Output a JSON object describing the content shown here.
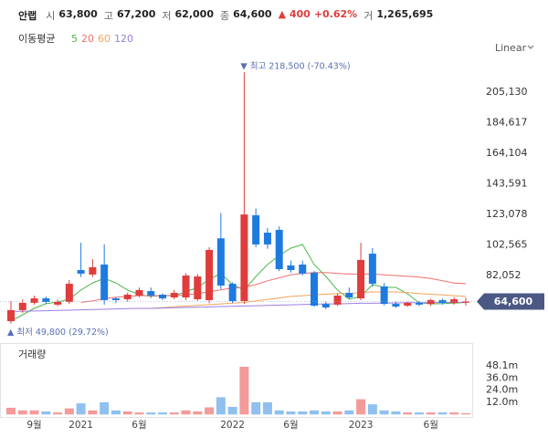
{
  "header": {
    "name": "안랩",
    "open_label": "시",
    "open": "63,800",
    "high_label": "고",
    "high": "67,200",
    "low_label": "저",
    "low": "62,000",
    "close_label": "종",
    "close": "64,600",
    "change": "▲ 400",
    "change_pct": "+0.62%",
    "volume_label": "거",
    "volume": "1,265,695"
  },
  "chart_data": {
    "type": "candlestick",
    "categories": [
      null,
      null,
      "9월",
      null,
      null,
      null,
      "2021",
      null,
      null,
      null,
      null,
      "6월",
      null,
      null,
      null,
      null,
      null,
      null,
      null,
      "2022",
      null,
      null,
      null,
      null,
      "6월",
      null,
      null,
      null,
      null,
      null,
      "2023",
      null,
      null,
      null,
      null,
      null,
      "6월",
      null,
      null,
      null
    ],
    "open": [
      51400,
      58800,
      63700,
      66700,
      62500,
      64300,
      85700,
      82700,
      89400,
      66700,
      66100,
      68600,
      71600,
      69200,
      67300,
      67300,
      66100,
      65500,
      107000,
      76500,
      64900,
      122500,
      110800,
      112700,
      88800,
      89400,
      83900,
      63000,
      62500,
      70400,
      66700,
      96700,
      74700,
      63000,
      61800,
      63700,
      63000,
      65500,
      63700,
      63800
    ],
    "high": [
      64900,
      66000,
      68500,
      68000,
      66000,
      79000,
      104000,
      93000,
      103000,
      67500,
      70500,
      74000,
      74000,
      70000,
      72500,
      83500,
      83000,
      101000,
      124000,
      77500,
      218500,
      127000,
      114000,
      115000,
      92000,
      92000,
      85000,
      64500,
      70000,
      74000,
      104000,
      100500,
      77000,
      64500,
      64500,
      65000,
      66500,
      66500,
      67500,
      67200
    ],
    "low": [
      49800,
      57000,
      62500,
      63000,
      61500,
      63000,
      81000,
      81000,
      62500,
      63500,
      64500,
      67500,
      67000,
      65500,
      66000,
      65500,
      64800,
      63500,
      73000,
      63500,
      63000,
      101000,
      100000,
      85000,
      84000,
      82000,
      61000,
      59500,
      61500,
      66000,
      65500,
      74500,
      62000,
      60300,
      61000,
      61500,
      61500,
      62500,
      62500,
      62000
    ],
    "close": [
      58800,
      63700,
      66700,
      64300,
      64300,
      76500,
      83300,
      87600,
      65500,
      65500,
      69200,
      72300,
      68600,
      66700,
      70400,
      82000,
      81400,
      99200,
      75300,
      64900,
      123000,
      102900,
      102900,
      86300,
      85700,
      83300,
      61800,
      60600,
      68600,
      67300,
      92500,
      76500,
      63000,
      61200,
      63700,
      62500,
      65500,
      63700,
      66100,
      64600
    ],
    "up_color": "#e03c3c",
    "down_color": "#1f7ae0",
    "ylim": [
      40400,
      229000
    ],
    "yticks": [
      {
        "value": 82052,
        "label": "82,052"
      },
      {
        "value": 102565,
        "label": "102,565"
      },
      {
        "value": 123078,
        "label": "123,078"
      },
      {
        "value": 143591,
        "label": "143,591"
      },
      {
        "value": 164104,
        "label": "164,104"
      },
      {
        "value": 184617,
        "label": "184,617"
      },
      {
        "value": 205130,
        "label": "205,130"
      }
    ],
    "grid": false,
    "scale_label": "Linear",
    "moving_average_label": "이동평균",
    "moving_averages": [
      {
        "name": "5",
        "color": "#4cb84c",
        "values": [
          51400,
          55700,
          60000,
          63100,
          64300,
          66100,
          72300,
          77100,
          80200,
          77100,
          72300,
          69200,
          68000,
          68600,
          68600,
          71000,
          74100,
          79600,
          83300,
          76000,
          72300,
          81400,
          89400,
          95500,
          100400,
          102900,
          89400,
          81400,
          72300,
          66100,
          68000,
          76000,
          74100,
          74100,
          69800,
          63700,
          63000,
          63200,
          63500,
          64000
        ]
      },
      {
        "name": "20",
        "color": "#f07070",
        "values": [
          null,
          null,
          null,
          null,
          null,
          null,
          64000,
          65000,
          66500,
          67500,
          68000,
          68500,
          68500,
          68500,
          68500,
          69000,
          70000,
          71000,
          72500,
          73500,
          74000,
          76000,
          78500,
          80500,
          82500,
          83500,
          84000,
          84000,
          83500,
          83000,
          83000,
          83000,
          82500,
          82000,
          81500,
          81000,
          80000,
          78500,
          77000,
          76500
        ]
      },
      {
        "name": "60",
        "color": "#f5a35a",
        "values": [
          null,
          null,
          null,
          null,
          null,
          null,
          null,
          null,
          null,
          null,
          null,
          null,
          60000,
          60500,
          61000,
          61500,
          62000,
          62500,
          63000,
          63500,
          64000,
          65000,
          66000,
          67000,
          68000,
          68500,
          69000,
          69500,
          70000,
          70000,
          70500,
          71000,
          71000,
          71000,
          70500,
          70000,
          69500,
          69000,
          68500,
          68000
        ]
      },
      {
        "name": "120",
        "color": "#9b7fe0",
        "values": [
          58000,
          58000,
          58200,
          58400,
          58600,
          58800,
          59000,
          59200,
          59400,
          59600,
          59800,
          60000,
          60000,
          60200,
          60400,
          60600,
          60800,
          61000,
          61200,
          61400,
          61600,
          61800,
          62000,
          62200,
          62400,
          62600,
          62800,
          63000,
          63000,
          63200,
          63400,
          63400,
          63600,
          63600,
          63800,
          63800,
          63800,
          64000,
          64000,
          64000
        ]
      }
    ],
    "annotations": {
      "high": "▼ 최고 218,500 (-70.43%)",
      "low": "▲ 최저 49,800 (29.72%)"
    },
    "volume": {
      "title": "거래량",
      "values": [
        6.6,
        4,
        4,
        3,
        2,
        6,
        11,
        4,
        12,
        4,
        3,
        2,
        2,
        2,
        2,
        4,
        3,
        7,
        17,
        7.5,
        47,
        12,
        12,
        4,
        3,
        3,
        4,
        3,
        3,
        4,
        15,
        10,
        4,
        3,
        2,
        2,
        2,
        2,
        2,
        1.27
      ],
      "up_color": "#f39a9a",
      "down_color": "#8fc0ef",
      "ylim": [
        0,
        59.6
      ],
      "yticks": [
        {
          "value": 12,
          "label": "12.0m"
        },
        {
          "value": 24,
          "label": "24.0m"
        },
        {
          "value": 36,
          "label": "36.0m"
        },
        {
          "value": 48.1,
          "label": "48.1m"
        }
      ]
    }
  }
}
